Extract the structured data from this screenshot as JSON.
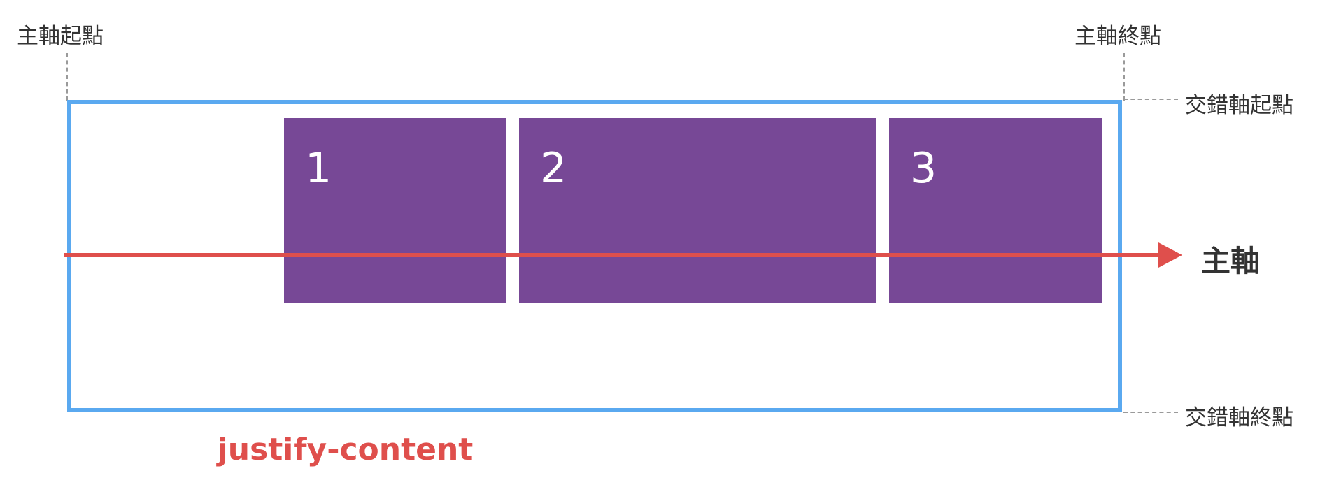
{
  "labels": {
    "main_start": "主軸起點",
    "main_end": "主軸終點",
    "cross_start": "交錯軸起點",
    "cross_end": "交錯軸終點",
    "main_axis": "主軸",
    "property": "justify-content"
  },
  "items": [
    "1",
    "2",
    "3"
  ],
  "colors": {
    "container_border": "#5aa9f0",
    "item_fill": "#774896",
    "axis_arrow": "#df4f4c",
    "property_text": "#df4f4c"
  }
}
